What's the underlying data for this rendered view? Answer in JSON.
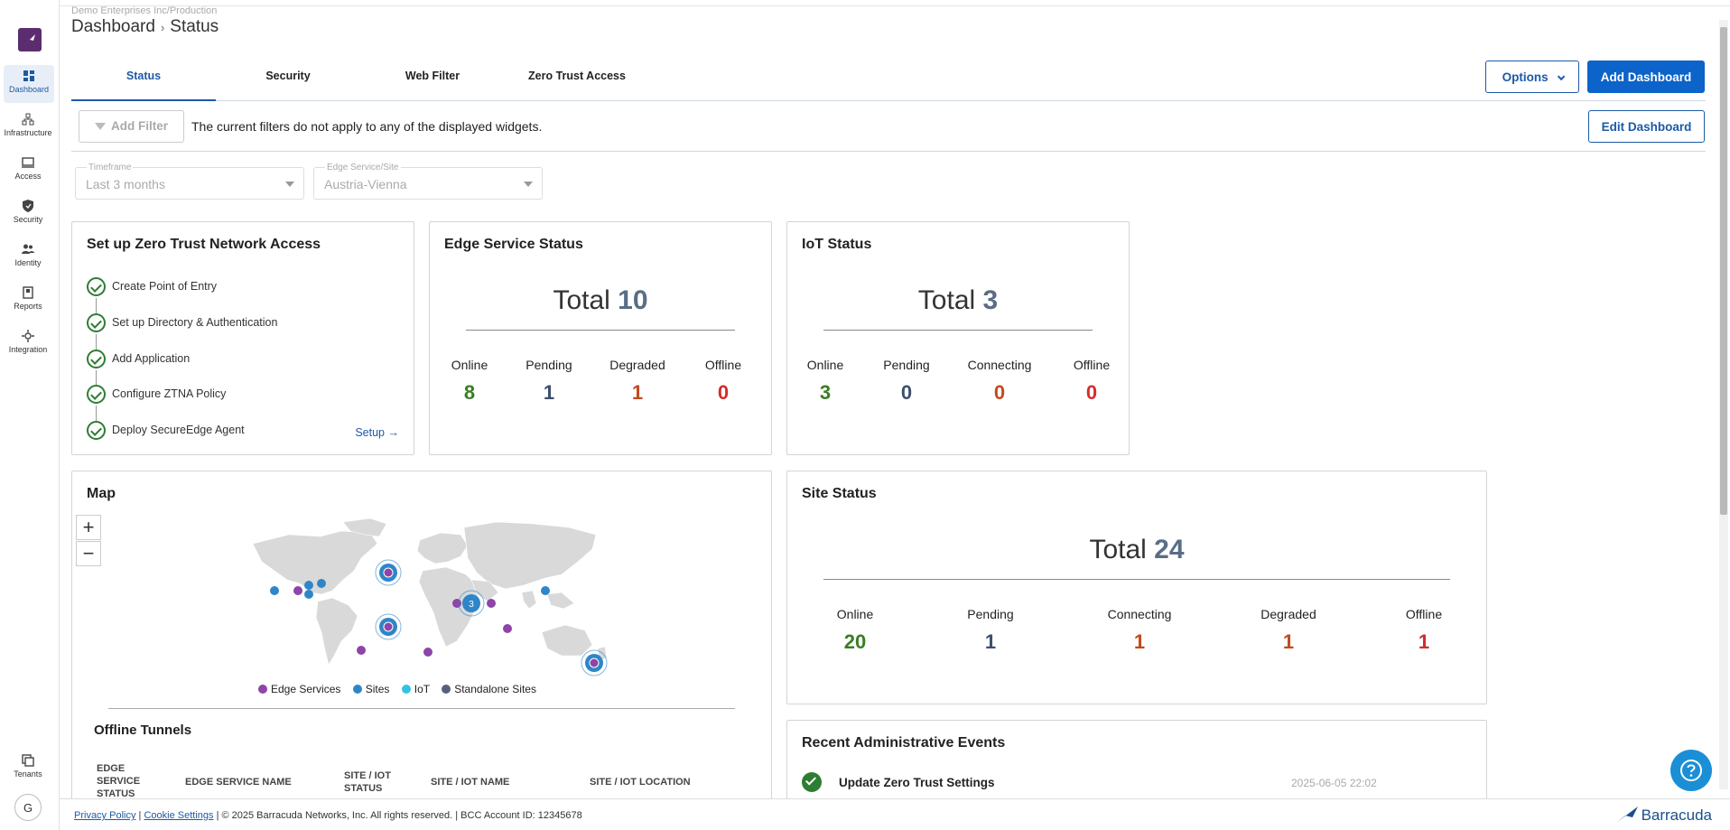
{
  "org_path": "Demo Enterprises Inc/Production",
  "breadcrumb": {
    "root": "Dashboard",
    "current": "Status"
  },
  "sidebar": {
    "items": [
      {
        "label": "Dashboard",
        "icon": "dashboard-icon"
      },
      {
        "label": "Infrastructure",
        "icon": "infrastructure-icon"
      },
      {
        "label": "Access",
        "icon": "access-icon"
      },
      {
        "label": "Security",
        "icon": "shield-icon"
      },
      {
        "label": "Identity",
        "icon": "identity-icon"
      },
      {
        "label": "Reports",
        "icon": "reports-icon"
      },
      {
        "label": "Integration",
        "icon": "integration-icon"
      }
    ],
    "tenants": "Tenants",
    "avatar": "G"
  },
  "tabs": [
    "Status",
    "Security",
    "Web Filter",
    "Zero Trust Access"
  ],
  "header_buttons": {
    "options": "Options",
    "add_dashboard": "Add Dashboard",
    "edit_dashboard": "Edit Dashboard"
  },
  "filter": {
    "add_filter": "Add Filter",
    "message": "The current filters do not apply to any of the displayed widgets."
  },
  "selects": {
    "timeframe": {
      "label": "Timeframe",
      "value": "Last 3 months"
    },
    "site": {
      "label": "Edge Service/Site",
      "value": "Austria-Vienna"
    }
  },
  "ztna": {
    "title": "Set up Zero Trust Network Access",
    "steps": [
      "Create Point of Entry",
      "Set up Directory & Authentication",
      "Add Application",
      "Configure ZTNA Policy",
      "Deploy SecureEdge Agent"
    ],
    "setup": "Setup"
  },
  "edge_status": {
    "title": "Edge Service Status",
    "total_label": "Total",
    "total": "10",
    "stats": [
      {
        "label": "Online",
        "value": "8"
      },
      {
        "label": "Pending",
        "value": "1"
      },
      {
        "label": "Degraded",
        "value": "1"
      },
      {
        "label": "Offline",
        "value": "0"
      }
    ]
  },
  "iot_status": {
    "title": "IoT Status",
    "total_label": "Total",
    "total": "3",
    "stats": [
      {
        "label": "Online",
        "value": "3"
      },
      {
        "label": "Pending",
        "value": "0"
      },
      {
        "label": "Connecting",
        "value": "0"
      },
      {
        "label": "Offline",
        "value": "0"
      }
    ]
  },
  "map": {
    "title": "Map",
    "cluster_count": "3",
    "legend": [
      "Edge Services",
      "Sites",
      "IoT",
      "Standalone Sites"
    ],
    "legend_colors": [
      "#8e44a8",
      "#2e86c8",
      "#35c2e2",
      "#55627a"
    ]
  },
  "site_status": {
    "title": "Site Status",
    "total_label": "Total",
    "total": "24",
    "stats": [
      {
        "label": "Online",
        "value": "20"
      },
      {
        "label": "Pending",
        "value": "1"
      },
      {
        "label": "Connecting",
        "value": "1"
      },
      {
        "label": "Degraded",
        "value": "1"
      },
      {
        "label": "Offline",
        "value": "1"
      }
    ]
  },
  "offline_tunnels": {
    "title": "Offline Tunnels",
    "columns": [
      "EDGE SERVICE STATUS",
      "EDGE SERVICE NAME",
      "SITE / IOT STATUS",
      "SITE / IOT NAME",
      "SITE / IOT LOCATION"
    ]
  },
  "admin_events": {
    "title": "Recent Administrative Events",
    "events": [
      {
        "name": "Update Zero Trust Settings",
        "time": "2025-06-05 22:02"
      }
    ]
  },
  "footer": {
    "privacy": "Privacy Policy",
    "cookie": "Cookie Settings",
    "copyright": "| © 2025 Barracuda Networks, Inc. All rights reserved. | BCC Account ID: 12345678",
    "brand": "Barracuda"
  }
}
